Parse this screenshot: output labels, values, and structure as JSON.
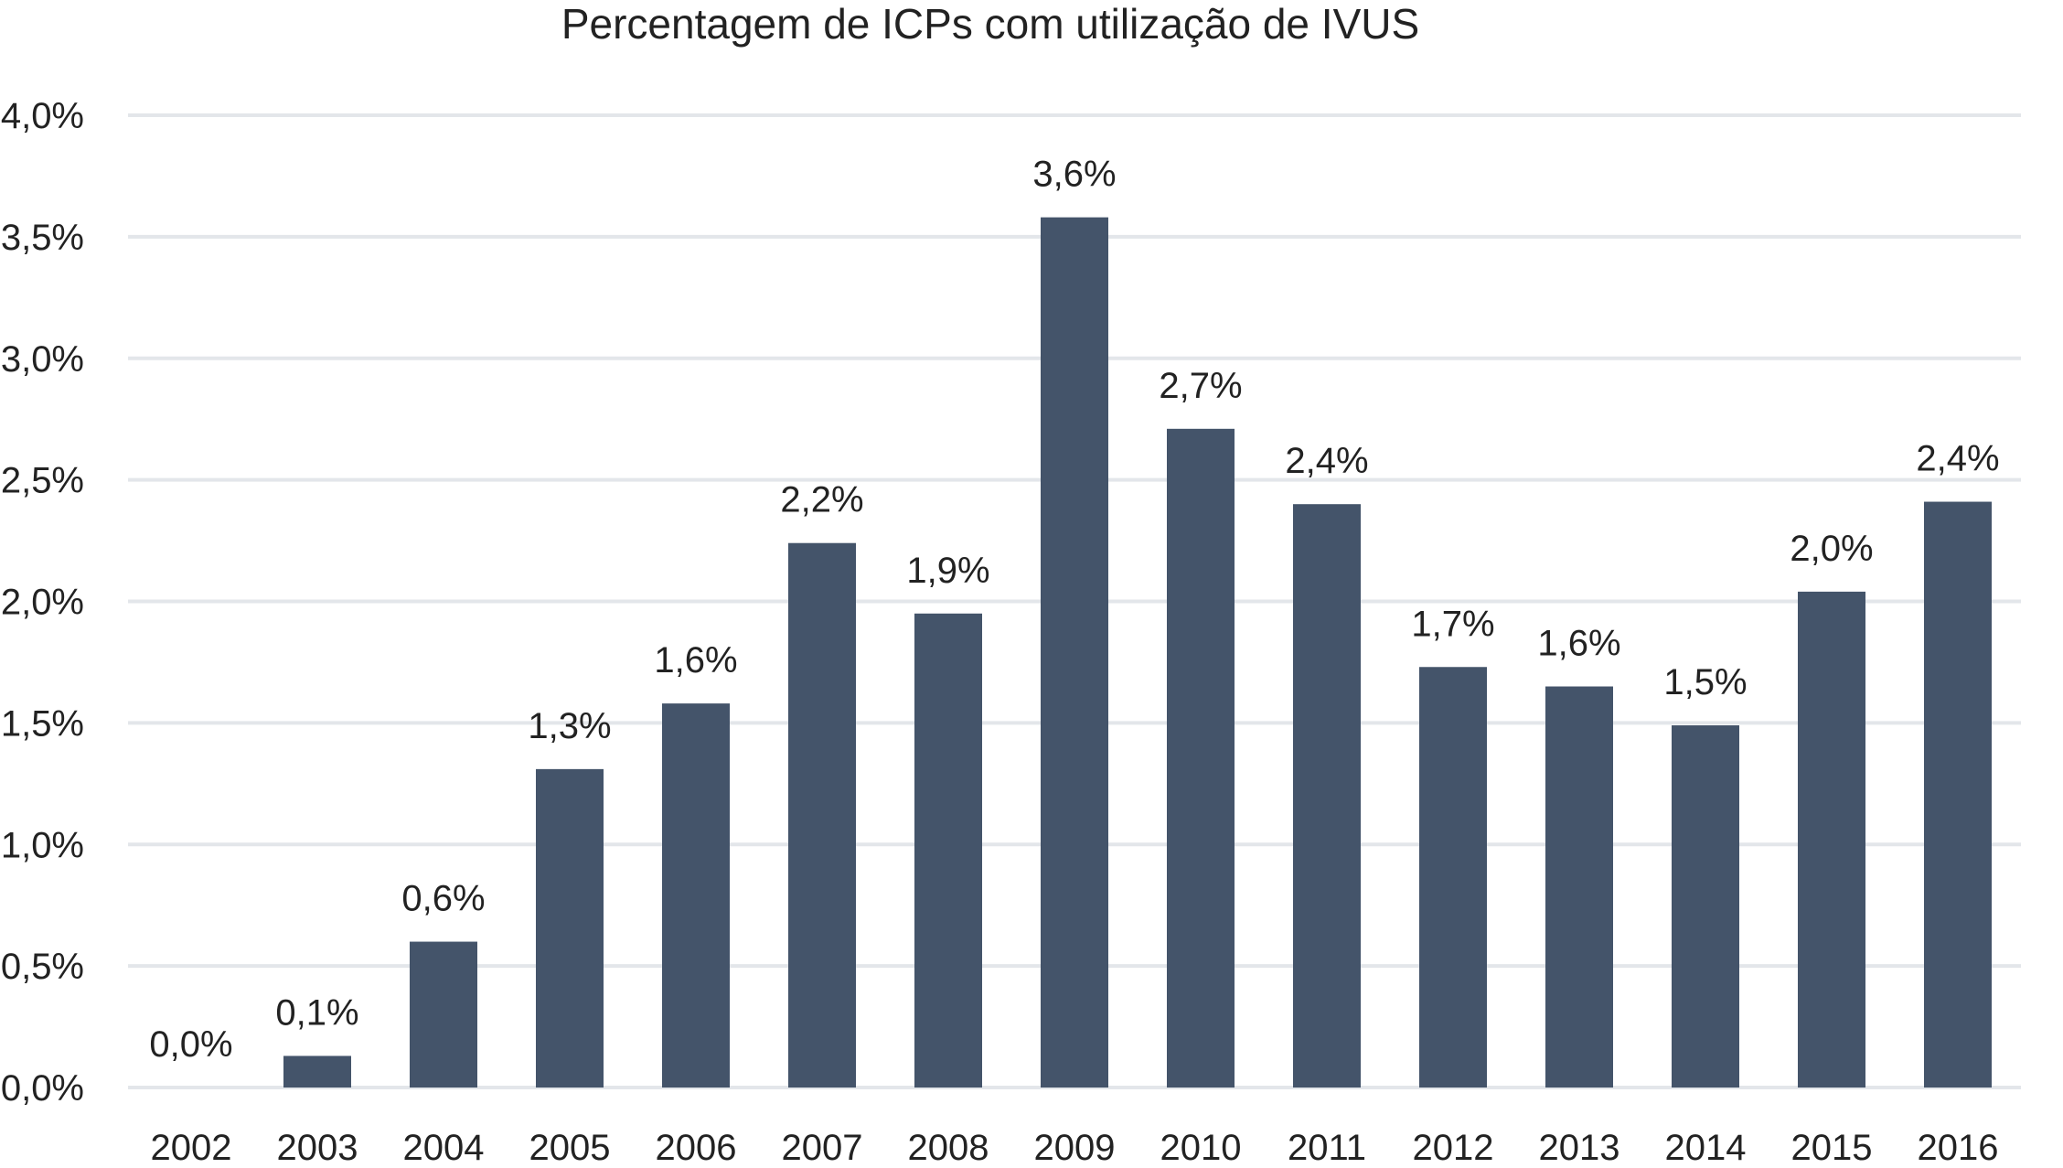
{
  "chart_data": {
    "type": "bar",
    "title": "Percentagem de ICPs com utilização de IVUS",
    "xlabel": "",
    "ylabel": "",
    "categories": [
      "2002",
      "2003",
      "2004",
      "2005",
      "2006",
      "2007",
      "2008",
      "2009",
      "2010",
      "2011",
      "2012",
      "2013",
      "2014",
      "2015",
      "2016"
    ],
    "values": [
      0.0,
      0.13,
      0.6,
      1.31,
      1.58,
      2.24,
      1.95,
      3.58,
      2.71,
      2.4,
      1.73,
      1.65,
      1.49,
      2.04,
      2.41
    ],
    "data_labels": [
      "0,0%",
      "0,1%",
      "0,6%",
      "1,3%",
      "1,6%",
      "2,2%",
      "1,9%",
      "3,6%",
      "2,7%",
      "2,4%",
      "1,7%",
      "1,6%",
      "1,5%",
      "2,0%",
      "2,4%"
    ],
    "ylim": [
      0,
      4
    ],
    "yticks": [
      0,
      0.5,
      1.0,
      1.5,
      2.0,
      2.5,
      3.0,
      3.5,
      4.0
    ],
    "ytick_labels": [
      "0,0%",
      "0,5%",
      "1,0%",
      "1,5%",
      "2,0%",
      "2,5%",
      "3,0%",
      "3,5%",
      "4,0%"
    ],
    "grid": true,
    "legend": "none",
    "colors": {
      "bar": "#44546a",
      "grid": "#e3e6ea",
      "text": "#222222"
    }
  }
}
